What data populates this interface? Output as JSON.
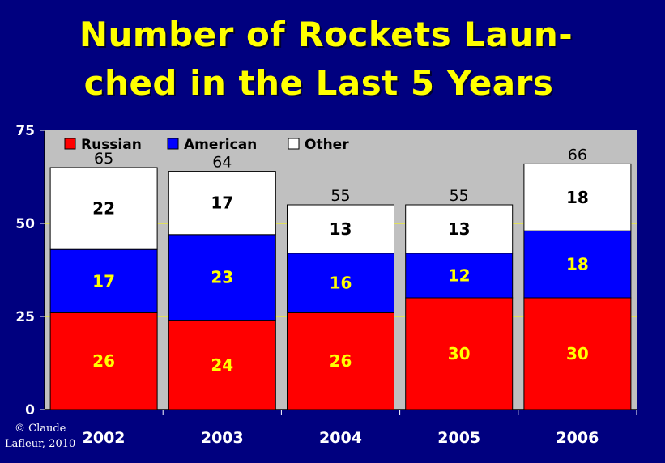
{
  "title": {
    "line1": "Number of Rockets Laun-",
    "line2": "ched in the Last 5 Years"
  },
  "credit": {
    "line1": "© Claude",
    "line2": "Lafleur, 2010"
  },
  "colors": {
    "background": "#00007f",
    "plot_area": "#c0c0c0",
    "title": "#ffff00",
    "gridline": "#ffff00",
    "russian": "#ff0000",
    "american": "#0000ff",
    "other": "#ffffff"
  },
  "chart_data": {
    "type": "bar",
    "stacked": true,
    "title": "Number of Rockets Launched in the Last 5 Years",
    "categories": [
      "2002",
      "2003",
      "2004",
      "2005",
      "2006"
    ],
    "series": [
      {
        "name": "Russian",
        "color": "#ff0000",
        "label_color": "#ffff00",
        "values": [
          26,
          24,
          26,
          30,
          30
        ]
      },
      {
        "name": "American",
        "color": "#0000ff",
        "label_color": "#ffff00",
        "values": [
          17,
          23,
          16,
          12,
          18
        ]
      },
      {
        "name": "Other",
        "color": "#ffffff",
        "label_color": "#000000",
        "values": [
          22,
          17,
          13,
          13,
          18
        ]
      }
    ],
    "totals": [
      65,
      64,
      55,
      55,
      66
    ],
    "ylim": [
      0,
      75
    ],
    "yticks": [
      0,
      25,
      50,
      75
    ],
    "xlabel": "",
    "ylabel": "",
    "grid": true,
    "legend_position": "top-left"
  }
}
